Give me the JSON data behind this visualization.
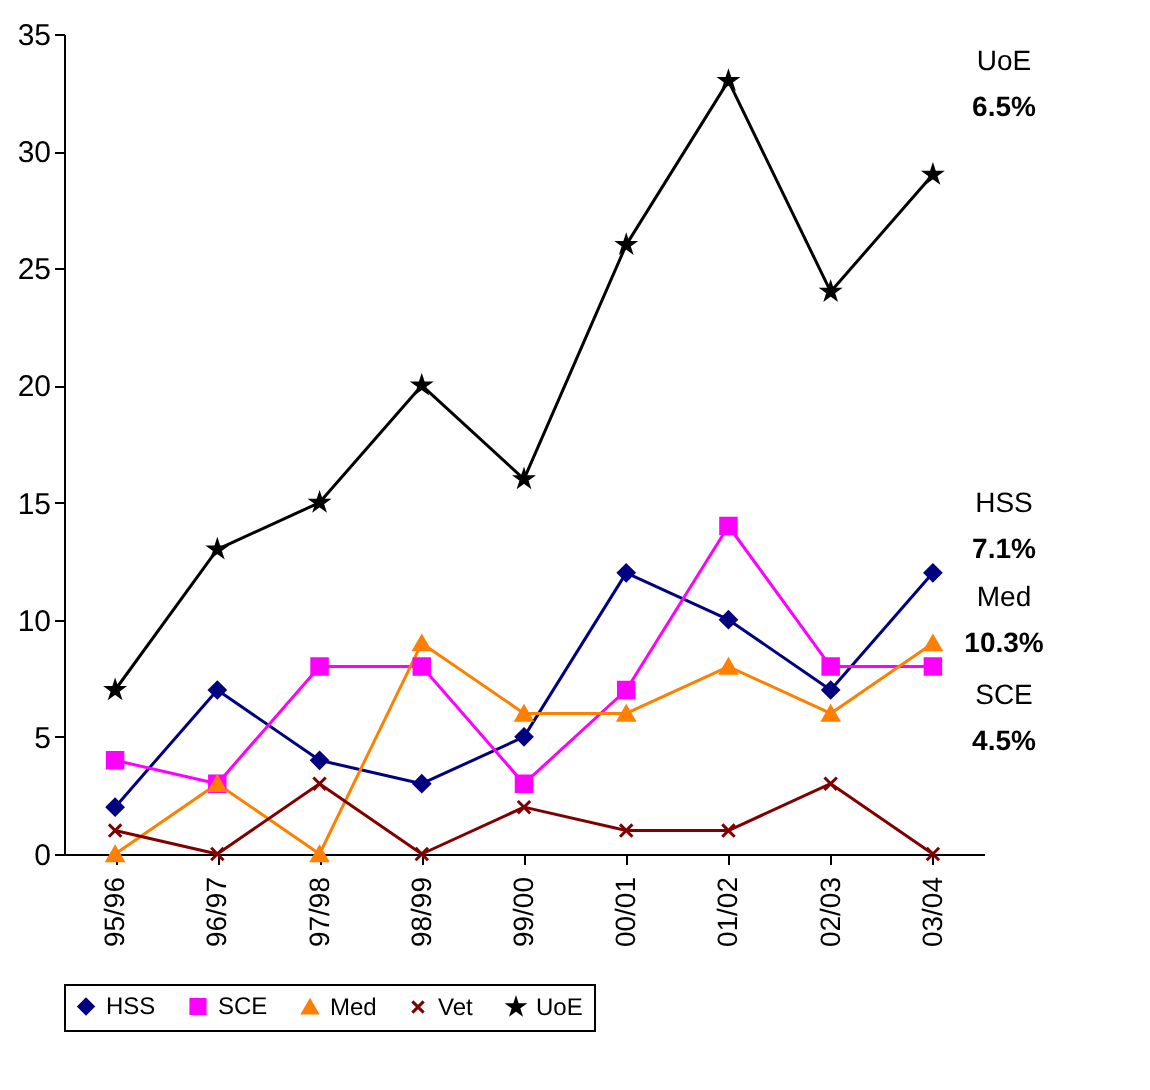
{
  "chart_data": {
    "type": "line",
    "categories": [
      "95/96",
      "96/97",
      "97/98",
      "98/99",
      "99/00",
      "00/01",
      "01/02",
      "02/03",
      "03/04"
    ],
    "series": [
      {
        "name": "HSS",
        "color": "#000080",
        "marker": "diamond",
        "values": [
          2,
          7,
          4,
          3,
          5,
          12,
          10,
          7,
          12
        ]
      },
      {
        "name": "SCE",
        "color": "#ff00ff",
        "marker": "square",
        "values": [
          4,
          3,
          8,
          8,
          3,
          7,
          14,
          8,
          8
        ]
      },
      {
        "name": "Med",
        "color": "#ff8000",
        "marker": "triangle",
        "values": [
          0,
          3,
          0,
          9,
          6,
          6,
          8,
          6,
          9
        ]
      },
      {
        "name": "Vet",
        "color": "#800000",
        "marker": "cross",
        "values": [
          1,
          0,
          3,
          0,
          2,
          1,
          1,
          3,
          0
        ]
      },
      {
        "name": "UoE",
        "color": "#000000",
        "marker": "star",
        "values": [
          7,
          13,
          15,
          20,
          16,
          26,
          33,
          24,
          29
        ]
      }
    ],
    "ylim": [
      0,
      35
    ],
    "yticks": [
      0,
      5,
      10,
      15,
      20,
      25,
      30,
      35
    ],
    "grid": false,
    "legend": "bottom",
    "annotations": [
      "UoE",
      "6.5%",
      "HSS",
      "7.1%",
      "Med",
      "10.3%",
      "SCE",
      "4.5%"
    ]
  }
}
